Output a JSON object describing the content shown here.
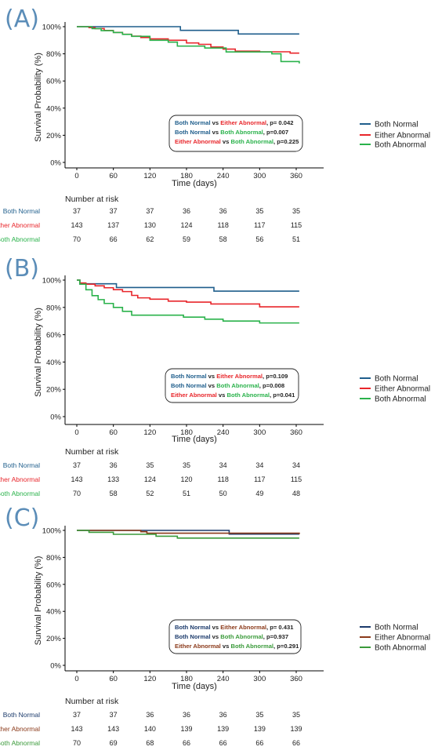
{
  "colors": {
    "Both Normal": "#1f5e8c",
    "Either Abnormal": "#e8262b",
    "Both Abnormal": "#2ab24b",
    "C_Both Normal": "#1b3a6b",
    "C_Either Abnormal": "#8b3a1a",
    "C_Both Abnormal": "#3a9a3a"
  },
  "chart_data": [
    {
      "type": "line",
      "panel_label": "(A)",
      "xlabel": "Time (days)",
      "ylabel": "Survival Probability (%)",
      "xticks": [
        0,
        60,
        120,
        180,
        240,
        300,
        360
      ],
      "yticks": [
        "0%",
        "20%",
        "40%",
        "60%",
        "80%",
        "100%"
      ],
      "xlim": [
        -15,
        375
      ],
      "ylim": [
        0,
        100
      ],
      "series": [
        {
          "name": "Both Normal",
          "x": [
            0,
            170,
            265,
            365
          ],
          "y": [
            100,
            97.3,
            94.6,
            94.6
          ]
        },
        {
          "name": "Either Abnormal",
          "x": [
            0,
            20,
            30,
            45,
            60,
            75,
            90,
            105,
            120,
            150,
            180,
            200,
            220,
            240,
            260,
            300,
            350,
            365
          ],
          "y": [
            100,
            99.3,
            98.6,
            97.2,
            95.8,
            94.4,
            93,
            92,
            91,
            90,
            88,
            87,
            85,
            83.5,
            82,
            81.5,
            80.5,
            80.5
          ]
        },
        {
          "name": "Both Abnormal",
          "x": [
            0,
            25,
            40,
            60,
            75,
            90,
            120,
            150,
            165,
            210,
            245,
            320,
            335,
            365
          ],
          "y": [
            100,
            98.6,
            97.1,
            95.7,
            94.3,
            92.9,
            90,
            88.6,
            85.7,
            84.3,
            81.4,
            80,
            74.3,
            72.9
          ]
        }
      ],
      "stats": [
        {
          "a": "Both Normal",
          "b": "Either Abnormal",
          "p": "p= 0.042"
        },
        {
          "a": "Both Normal",
          "b": "Both Abnormal",
          "p": "p=0.007"
        },
        {
          "a": "Either Abnormal",
          "b": "Both Abnormal",
          "p": "p=0.225"
        }
      ],
      "risk": {
        "title": "Number at risk",
        "rows": [
          {
            "name": "Both Normal",
            "values": [
              37,
              37,
              37,
              36,
              36,
              35,
              35
            ]
          },
          {
            "name": "Either Abnormal",
            "values": [
              143,
              137,
              130,
              124,
              118,
              117,
              115
            ]
          },
          {
            "name": "Both Abnormal",
            "values": [
              70,
              66,
              62,
              59,
              58,
              56,
              51
            ]
          }
        ]
      },
      "legend": [
        "Both Normal",
        "Either Abnormal",
        "Both Abnormal"
      ]
    },
    {
      "type": "line",
      "panel_label": "(B)",
      "xlabel": "Time (days)",
      "ylabel": "Survival Probability (%)",
      "xticks": [
        0,
        60,
        120,
        180,
        240,
        300,
        360
      ],
      "yticks": [
        "0%",
        "20%",
        "40%",
        "60%",
        "80%",
        "100%"
      ],
      "xlim": [
        -15,
        375
      ],
      "ylim": [
        0,
        100
      ],
      "series": [
        {
          "name": "Both Normal",
          "x": [
            0,
            5,
            60,
            65,
            225,
            365
          ],
          "y": [
            100,
            97.3,
            97.3,
            94.6,
            91.9,
            91.9
          ]
        },
        {
          "name": "Either Abnormal",
          "x": [
            0,
            5,
            15,
            30,
            45,
            60,
            75,
            90,
            100,
            120,
            150,
            180,
            220,
            300,
            365
          ],
          "y": [
            100,
            97.9,
            97,
            95.8,
            94.4,
            93,
            91.6,
            88.8,
            87,
            86,
            84.6,
            83.9,
            82.5,
            80.4,
            80.4
          ]
        },
        {
          "name": "Both Abnormal",
          "x": [
            0,
            5,
            15,
            25,
            35,
            45,
            60,
            75,
            90,
            110,
            175,
            210,
            240,
            300,
            365
          ],
          "y": [
            100,
            97,
            92.9,
            88.6,
            85.7,
            82.9,
            80,
            77.1,
            74.3,
            74.3,
            72.9,
            71.4,
            70,
            68.6,
            68.6
          ]
        }
      ],
      "stats": [
        {
          "a": "Both Normal",
          "b": "Either Abnormal",
          "p": "p=0.109"
        },
        {
          "a": "Both Normal",
          "b": "Both Abnormal",
          "p": "p=0.008"
        },
        {
          "a": "Either Abnormal",
          "b": "Both Abnormal",
          "p": "p=0.041"
        }
      ],
      "risk": {
        "title": "Number at risk",
        "rows": [
          {
            "name": "Both Normal",
            "values": [
              37,
              36,
              35,
              35,
              34,
              34,
              34
            ]
          },
          {
            "name": "Either Abnormal",
            "values": [
              143,
              133,
              124,
              120,
              118,
              117,
              115
            ]
          },
          {
            "name": "Both Abnormal",
            "values": [
              70,
              58,
              52,
              51,
              50,
              49,
              48
            ]
          }
        ]
      },
      "legend": [
        "Both Normal",
        "Either Abnormal",
        "Both Abnormal"
      ]
    },
    {
      "type": "line",
      "panel_label": "(C)",
      "xlabel": "Time (days)",
      "ylabel": "Survival Probability (%)",
      "xticks": [
        0,
        60,
        120,
        180,
        240,
        300,
        360
      ],
      "yticks": [
        "0%",
        "20%",
        "40%",
        "60%",
        "80%",
        "100%"
      ],
      "xlim": [
        -15,
        375
      ],
      "ylim": [
        0,
        100
      ],
      "series": [
        {
          "name": "Both Normal",
          "x": [
            0,
            250,
            365
          ],
          "y": [
            100,
            97.3,
            97.3
          ]
        },
        {
          "name": "Either Abnormal",
          "x": [
            0,
            105,
            115,
            365
          ],
          "y": [
            100,
            99,
            97.9,
            97.2
          ]
        },
        {
          "name": "Both Abnormal",
          "x": [
            0,
            20,
            60,
            130,
            165,
            365
          ],
          "y": [
            100,
            98.6,
            97.1,
            95.7,
            94.3,
            94.3
          ]
        }
      ],
      "stats": [
        {
          "a": "Both Normal",
          "b": "Either Abnormal",
          "p": "p= 0.431"
        },
        {
          "a": "Both Normal",
          "b": "Both Abnormal",
          "p": "p=0.937"
        },
        {
          "a": "Either Abnormal",
          "b": "Both Abnormal",
          "p": "p=0.291"
        }
      ],
      "risk": {
        "title": "Number at risk",
        "rows": [
          {
            "name": "Both Normal",
            "values": [
              37,
              37,
              36,
              36,
              36,
              35,
              35
            ]
          },
          {
            "name": "Either Abnormal",
            "values": [
              143,
              143,
              140,
              139,
              139,
              139,
              139
            ]
          },
          {
            "name": "Both Abnormal",
            "values": [
              70,
              69,
              68,
              66,
              66,
              66,
              66
            ]
          }
        ]
      },
      "legend": [
        "Both Normal",
        "Either Abnormal",
        "Both Abnormal"
      ]
    }
  ]
}
